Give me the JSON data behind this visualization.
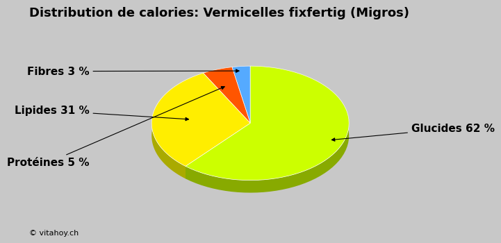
{
  "title": "Distribution de calories: Vermicelles fixfertig (Migros)",
  "labels": [
    "Glucides 62 %",
    "Lipides 31 %",
    "Protéines 5 %",
    "Fibres 3 %"
  ],
  "values": [
    62,
    31,
    5,
    3
  ],
  "colors": [
    "#CCFF00",
    "#FFEE00",
    "#FF5500",
    "#55AAFF"
  ],
  "shadow_colors": [
    "#88AA00",
    "#AAAA00",
    "#AA3300",
    "#2255AA"
  ],
  "background_color": "#C8C8C8",
  "title_fontsize": 13,
  "label_fontsize": 11,
  "copyright": "© vitahoy.ch",
  "startangle": 90
}
